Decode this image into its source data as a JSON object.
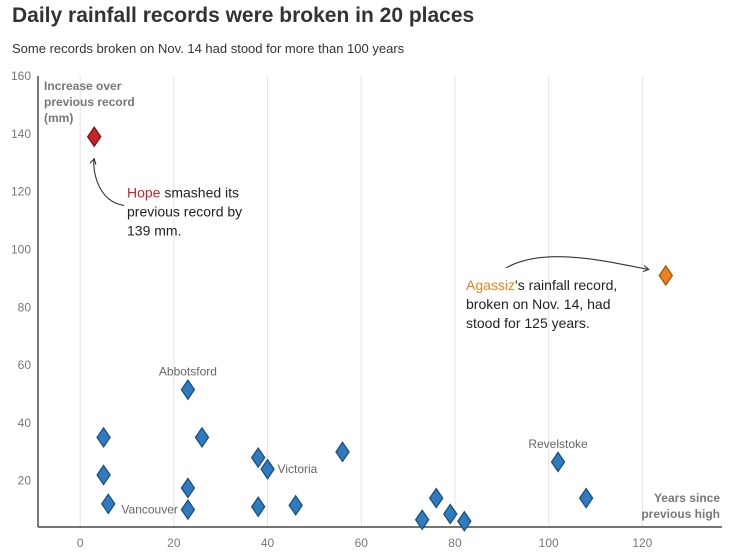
{
  "chart_data": {
    "type": "scatter",
    "title": "Daily rainfall records were broken in 20 places",
    "subtitle": "Some records broken on Nov. 14 had stood for more than 100 years",
    "xlabel": [
      "Years since",
      "previous high"
    ],
    "ylabel": [
      "Increase over",
      "previous record",
      "(mm)"
    ],
    "xlim": [
      -9,
      137
    ],
    "ylim": [
      4,
      160
    ],
    "x_ticks": [
      0,
      20,
      40,
      60,
      80,
      100,
      120
    ],
    "y_ticks": [
      20,
      40,
      60,
      80,
      100,
      120,
      140,
      160
    ],
    "grid": "vertical",
    "colors": {
      "default": "#2f7bbf",
      "default_stroke": "#1b4f80",
      "hope": "#c8232b",
      "hope_stroke": "#7d1318",
      "agassiz": "#f0821d",
      "agassiz_stroke": "#a4540c"
    },
    "points": [
      {
        "x": 3,
        "y": 139,
        "name": "Hope",
        "highlight": "hope"
      },
      {
        "x": 125,
        "y": 91,
        "name": "Agassiz",
        "highlight": "agassiz"
      },
      {
        "x": 23,
        "y": 51.5,
        "name": "Abbotsford",
        "label_pos": "top"
      },
      {
        "x": 5,
        "y": 35
      },
      {
        "x": 26,
        "y": 35
      },
      {
        "x": 5,
        "y": 22
      },
      {
        "x": 6,
        "y": 12
      },
      {
        "x": 23,
        "y": 10,
        "name": "Vancouver",
        "label_pos": "left"
      },
      {
        "x": 23,
        "y": 17.5
      },
      {
        "x": 38,
        "y": 28
      },
      {
        "x": 40,
        "y": 24,
        "name": "Victoria",
        "label_pos": "right"
      },
      {
        "x": 38,
        "y": 11
      },
      {
        "x": 46,
        "y": 11.5
      },
      {
        "x": 56,
        "y": 30
      },
      {
        "x": 73,
        "y": 6.5
      },
      {
        "x": 76,
        "y": 14
      },
      {
        "x": 79,
        "y": 8.5
      },
      {
        "x": 82,
        "y": 6
      },
      {
        "x": 102,
        "y": 26.5,
        "name": "Revelstoke",
        "label_pos": "top"
      },
      {
        "x": 108,
        "y": 14
      }
    ],
    "annotations": [
      {
        "target": "Hope",
        "highlight_word": "Hope",
        "lines": [
          " smashed its",
          "previous record by",
          "139 mm."
        ]
      },
      {
        "target": "Agassiz",
        "highlight_word": "Agassiz",
        "lines": [
          "'s rainfall record,",
          "broken on Nov. 14, had",
          "stood for 125 years."
        ]
      }
    ]
  }
}
